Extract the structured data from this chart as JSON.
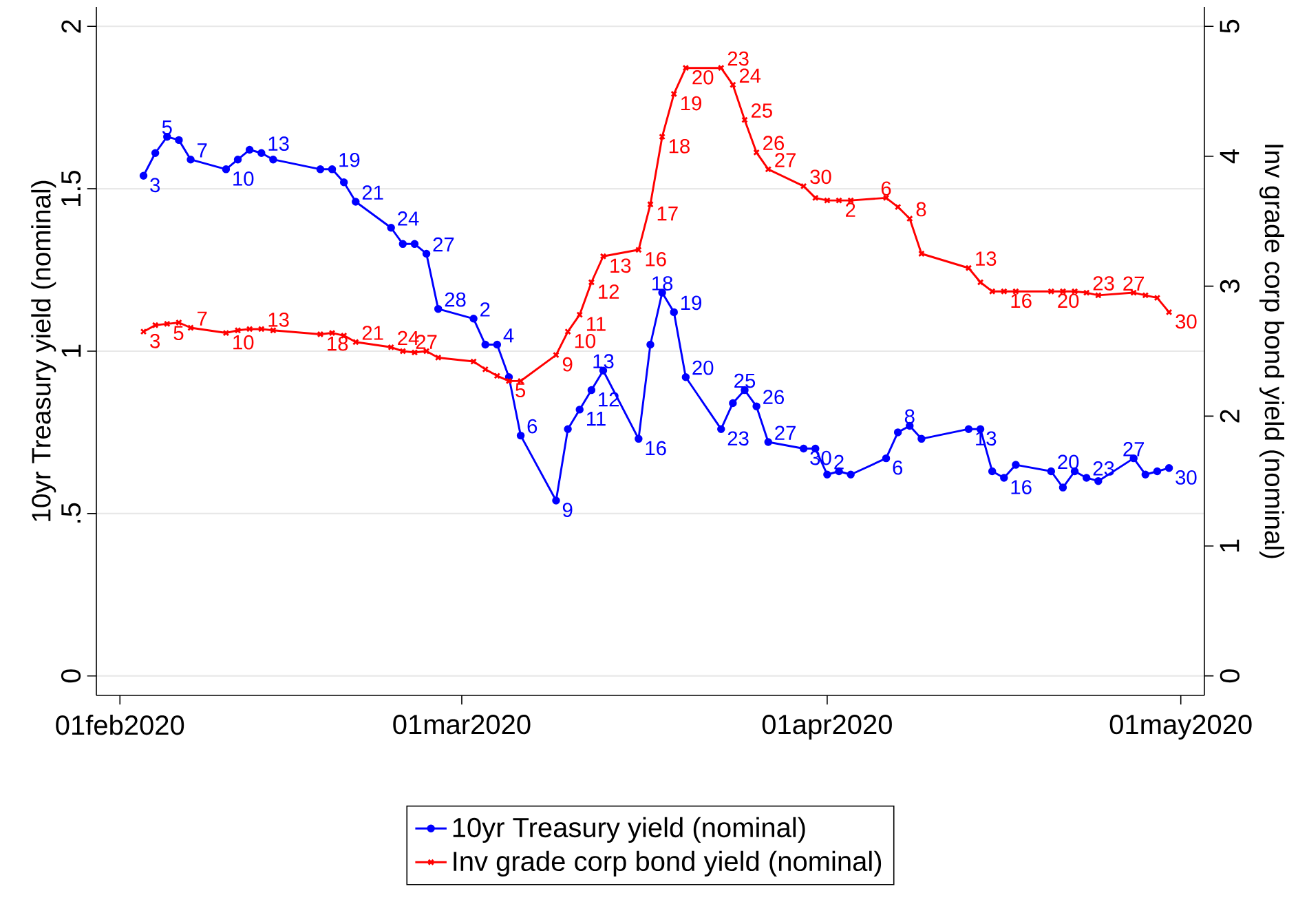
{
  "chart_data": {
    "type": "line",
    "ylabel": "10yr Treasury yield (nominal)",
    "y2label": "Inv grade corp bond yield (nominal)",
    "x": [
      "2020-02-03",
      "2020-02-04",
      "2020-02-05",
      "2020-02-06",
      "2020-02-07",
      "2020-02-10",
      "2020-02-11",
      "2020-02-12",
      "2020-02-13",
      "2020-02-14",
      "2020-02-18",
      "2020-02-19",
      "2020-02-20",
      "2020-02-21",
      "2020-02-24",
      "2020-02-25",
      "2020-02-26",
      "2020-02-27",
      "2020-02-28",
      "2020-03-02",
      "2020-03-03",
      "2020-03-04",
      "2020-03-05",
      "2020-03-06",
      "2020-03-09",
      "2020-03-10",
      "2020-03-11",
      "2020-03-12",
      "2020-03-13",
      "2020-03-16",
      "2020-03-17",
      "2020-03-18",
      "2020-03-19",
      "2020-03-20",
      "2020-03-23",
      "2020-03-24",
      "2020-03-25",
      "2020-03-26",
      "2020-03-27",
      "2020-03-30",
      "2020-03-31",
      "2020-04-01",
      "2020-04-02",
      "2020-04-03",
      "2020-04-06",
      "2020-04-07",
      "2020-04-08",
      "2020-04-09",
      "2020-04-13",
      "2020-04-14",
      "2020-04-15",
      "2020-04-16",
      "2020-04-17",
      "2020-04-20",
      "2020-04-21",
      "2020-04-22",
      "2020-04-23",
      "2020-04-24",
      "2020-04-27",
      "2020-04-28",
      "2020-04-29",
      "2020-04-30"
    ],
    "series": [
      {
        "name": "10yr Treasury yield (nominal)",
        "color": "#0000ff",
        "marker": "circle",
        "values": [
          1.54,
          1.61,
          1.66,
          1.65,
          1.59,
          1.56,
          1.59,
          1.62,
          1.61,
          1.59,
          1.56,
          1.56,
          1.52,
          1.46,
          1.38,
          1.33,
          1.33,
          1.3,
          1.13,
          1.1,
          1.02,
          1.02,
          0.92,
          0.74,
          0.54,
          0.76,
          0.82,
          0.88,
          0.94,
          0.73,
          1.02,
          1.18,
          1.12,
          0.92,
          0.76,
          0.84,
          0.88,
          0.83,
          0.72,
          0.7,
          0.7,
          0.62,
          0.63,
          0.62,
          0.67,
          0.75,
          0.77,
          0.73,
          0.76,
          0.76,
          0.63,
          0.61,
          0.65,
          0.63,
          0.58,
          0.63,
          0.61,
          0.6,
          0.67,
          0.62,
          0.63,
          0.64
        ]
      },
      {
        "name": "Inv grade corp bond yield (nominal)",
        "color": "#ff0000",
        "marker": "cross",
        "axis": "y2",
        "values": [
          2.65,
          2.7,
          2.71,
          2.72,
          2.68,
          2.64,
          2.66,
          2.67,
          2.67,
          2.66,
          2.63,
          2.64,
          2.62,
          2.57,
          2.53,
          2.5,
          2.49,
          2.5,
          2.45,
          2.42,
          2.36,
          2.31,
          2.27,
          2.27,
          2.47,
          2.65,
          2.78,
          3.03,
          3.23,
          3.28,
          3.63,
          4.15,
          4.48,
          4.68,
          4.68,
          4.55,
          4.28,
          4.03,
          3.9,
          3.77,
          3.68,
          3.66,
          3.66,
          3.66,
          3.68,
          3.61,
          3.52,
          3.25,
          3.14,
          3.03,
          2.96,
          2.96,
          2.96,
          2.96,
          2.96,
          2.96,
          2.95,
          2.93,
          2.95,
          2.93,
          2.91,
          2.8
        ]
      }
    ],
    "annotations": [
      {
        "text": "3",
        "x": "2020-02-03",
        "y": 1.54
      },
      {
        "text": "5",
        "x": "2020-02-05",
        "y": 1.66
      },
      {
        "text": "7",
        "x": "2020-02-07",
        "y": 1.59
      },
      {
        "text": "10",
        "x": "2020-02-10",
        "y": 1.56
      },
      {
        "text": "13",
        "x": "2020-02-13",
        "y": 1.61
      },
      {
        "text": "19",
        "x": "2020-02-19",
        "y": 1.56
      },
      {
        "text": "21",
        "x": "2020-02-21",
        "y": 1.46
      },
      {
        "text": "24",
        "x": "2020-02-24",
        "y": 1.38
      },
      {
        "text": "27",
        "x": "2020-02-27",
        "y": 1.3
      },
      {
        "text": "28",
        "x": "2020-02-28",
        "y": 1.13
      },
      {
        "text": "2",
        "x": "2020-03-02",
        "y": 1.1
      },
      {
        "text": "4",
        "x": "2020-03-04",
        "y": 1.02
      },
      {
        "text": "6",
        "x": "2020-03-06",
        "y": 0.74
      },
      {
        "text": "9",
        "x": "2020-03-09",
        "y": 0.54
      },
      {
        "text": "11",
        "x": "2020-03-11",
        "y": 0.82
      },
      {
        "text": "12",
        "x": "2020-03-12",
        "y": 0.88
      },
      {
        "text": "13",
        "x": "2020-03-13",
        "y": 0.94
      },
      {
        "text": "16",
        "x": "2020-03-16",
        "y": 0.73
      },
      {
        "text": "18",
        "x": "2020-03-18",
        "y": 1.18
      },
      {
        "text": "19",
        "x": "2020-03-19",
        "y": 1.12
      },
      {
        "text": "20",
        "x": "2020-03-20",
        "y": 0.92
      },
      {
        "text": "23",
        "x": "2020-03-23",
        "y": 0.76
      },
      {
        "text": "25",
        "x": "2020-03-25",
        "y": 0.88
      },
      {
        "text": "26",
        "x": "2020-03-26",
        "y": 0.83
      },
      {
        "text": "27",
        "x": "2020-03-27",
        "y": 0.72
      },
      {
        "text": "30",
        "x": "2020-03-30",
        "y": 0.7
      },
      {
        "text": "2",
        "x": "2020-04-02",
        "y": 0.63
      },
      {
        "text": "6",
        "x": "2020-04-06",
        "y": 0.67
      },
      {
        "text": "8",
        "x": "2020-04-08",
        "y": 0.77
      },
      {
        "text": "13",
        "x": "2020-04-13",
        "y": 0.76
      },
      {
        "text": "16",
        "x": "2020-04-16",
        "y": 0.61
      },
      {
        "text": "20",
        "x": "2020-04-20",
        "y": 0.63
      },
      {
        "text": "23",
        "x": "2020-04-23",
        "y": 0.61
      },
      {
        "text": "27",
        "x": "2020-04-27",
        "y": 0.67
      },
      {
        "text": "30",
        "x": "2020-04-30",
        "y": 0.64
      },
      {
        "text": "3",
        "x": "2020-02-03",
        "y": 1.06
      },
      {
        "text": "5",
        "x": "2020-02-05",
        "y": 1.084
      },
      {
        "text": "7",
        "x": "2020-02-07",
        "y": 1.072
      },
      {
        "text": "10",
        "x": "2020-02-10",
        "y": 1.056
      },
      {
        "text": "13",
        "x": "2020-02-13",
        "y": 1.068
      },
      {
        "text": "18",
        "x": "2020-02-18",
        "y": 1.052
      },
      {
        "text": "21",
        "x": "2020-02-21",
        "y": 1.028
      },
      {
        "text": "24",
        "x": "2020-02-24",
        "y": 1.012
      },
      {
        "text": "27",
        "x": "2020-02-27",
        "y": 1.0
      },
      {
        "text": "5",
        "x": "2020-03-05",
        "y": 0.908
      },
      {
        "text": "9",
        "x": "2020-03-09",
        "y": 0.988
      },
      {
        "text": "10",
        "x": "2020-03-10",
        "y": 1.06
      },
      {
        "text": "11",
        "x": "2020-03-11",
        "y": 1.112
      },
      {
        "text": "12",
        "x": "2020-03-12",
        "y": 1.212
      },
      {
        "text": "13",
        "x": "2020-03-13",
        "y": 1.292
      },
      {
        "text": "16",
        "x": "2020-03-16",
        "y": 1.312
      },
      {
        "text": "17",
        "x": "2020-03-17",
        "y": 1.452
      },
      {
        "text": "18",
        "x": "2020-03-18",
        "y": 1.66
      },
      {
        "text": "19",
        "x": "2020-03-19",
        "y": 1.792
      },
      {
        "text": "20",
        "x": "2020-03-20",
        "y": 1.872
      },
      {
        "text": "23",
        "x": "2020-03-23",
        "y": 1.872
      },
      {
        "text": "24",
        "x": "2020-03-24",
        "y": 1.82
      },
      {
        "text": "25",
        "x": "2020-03-25",
        "y": 1.712
      },
      {
        "text": "26",
        "x": "2020-03-26",
        "y": 1.612
      },
      {
        "text": "27",
        "x": "2020-03-27",
        "y": 1.56
      },
      {
        "text": "30",
        "x": "2020-03-30",
        "y": 1.508
      },
      {
        "text": "2",
        "x": "2020-04-02",
        "y": 1.464
      },
      {
        "text": "6",
        "x": "2020-04-06",
        "y": 1.472
      },
      {
        "text": "8",
        "x": "2020-04-08",
        "y": 1.408
      },
      {
        "text": "13",
        "x": "2020-04-13",
        "y": 1.256
      },
      {
        "text": "16",
        "x": "2020-04-16",
        "y": 1.184
      },
      {
        "text": "20",
        "x": "2020-04-20",
        "y": 1.184
      },
      {
        "text": "23",
        "x": "2020-04-23",
        "y": 1.18
      },
      {
        "text": "27",
        "x": "2020-04-27",
        "y": 1.18
      },
      {
        "text": "30",
        "x": "2020-04-30",
        "y": 1.12
      }
    ],
    "xlim": [
      "2020-01-30",
      "2020-05-03"
    ],
    "xticks": [
      {
        "value": "2020-02-01",
        "label": "01feb2020"
      },
      {
        "value": "2020-03-01",
        "label": "01mar2020"
      },
      {
        "value": "2020-04-01",
        "label": "01apr2020"
      },
      {
        "value": "2020-05-01",
        "label": "01may2020"
      }
    ],
    "ylim": [
      -0.06,
      2.06
    ],
    "yticks": [
      0,
      {
        "value": 0.5,
        "label": ".5"
      },
      1,
      1.5,
      2
    ],
    "y2lim": [
      -0.15,
      5.15
    ],
    "y2ticks": [
      0,
      1,
      2,
      3,
      4,
      5
    ],
    "grid": "y",
    "legend": "bottom"
  }
}
